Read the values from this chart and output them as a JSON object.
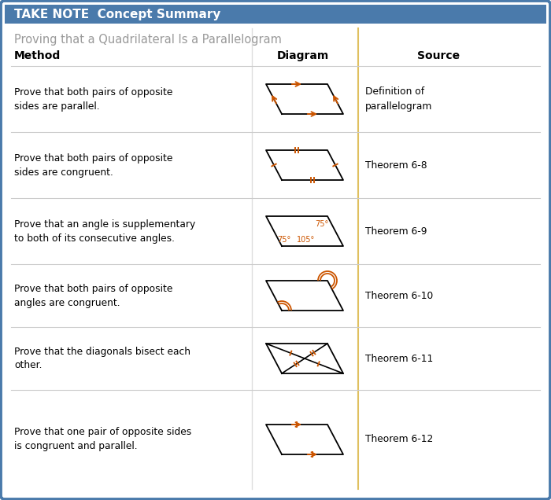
{
  "title": "TAKE NOTE  Concept Summary",
  "subtitle": "Proving that a Quadrilateral Is a Parallelogram",
  "header_bg": "#4a7aab",
  "header_text_color": "#ffffff",
  "border_color": "#4a7aab",
  "bg_color": "#f8f8f8",
  "subtitle_color": "#999999",
  "orange": "#cc5500",
  "col_div_color": "#e0c060",
  "row_div_color": "#cccccc",
  "rows": [
    {
      "method": "Prove that both pairs of opposite\nsides are parallel.",
      "source": "Definition of\nparallelogram"
    },
    {
      "method": "Prove that both pairs of opposite\nsides are congruent.",
      "source": "Theorem 6-8"
    },
    {
      "method": "Prove that an angle is supplementary\nto both of its consecutive angles.",
      "source": "Theorem 6-9"
    },
    {
      "method": "Prove that both pairs of opposite\nangles are congruent.",
      "source": "Theorem 6-10"
    },
    {
      "method": "Prove that the diagonals bisect each\nother.",
      "source": "Theorem 6-11"
    },
    {
      "method": "Prove that one pair of opposite sides\nis congruent and parallel.",
      "source": "Theorem 6-12"
    }
  ],
  "figw": 7.0,
  "figh": 6.36,
  "dpi": 100
}
